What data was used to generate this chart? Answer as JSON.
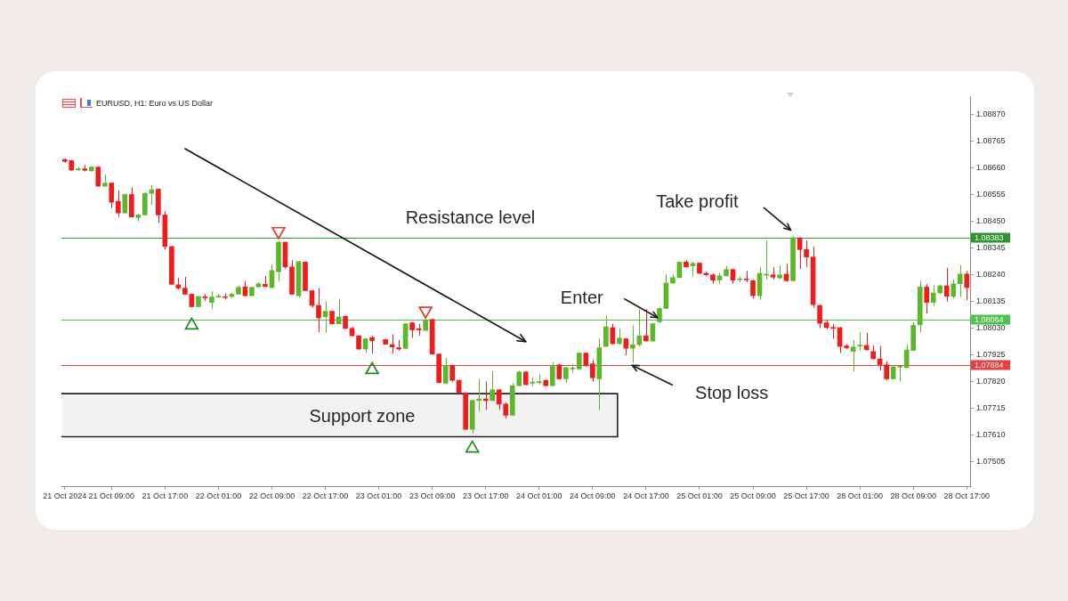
{
  "chart_data": {
    "type": "candlestick",
    "title": "EURUSD, H1: Euro vs US Dollar",
    "categories": [
      "21 Oct 2024",
      null,
      null,
      null,
      null,
      null,
      null,
      "21 Oct 09:00",
      null,
      null,
      null,
      null,
      null,
      null,
      null,
      "21 Oct 17:00",
      null,
      null,
      null,
      null,
      null,
      null,
      null,
      "22 Oct 01:00",
      null,
      null,
      null,
      null,
      null,
      null,
      null,
      "22 Oct 09:00",
      null,
      null,
      null,
      null,
      null,
      null,
      null,
      "22 Oct 17:00",
      null,
      null,
      null,
      null,
      null,
      null,
      null,
      "23 Oct 01:00",
      null,
      null,
      null,
      null,
      null,
      null,
      null,
      "23 Oct 09:00",
      null,
      null,
      null,
      null,
      null,
      null,
      null,
      "23 Oct 17:00",
      null,
      null,
      null,
      null,
      null,
      null,
      null,
      "24 Oct 01:00",
      null,
      null,
      null,
      null,
      null,
      null,
      null,
      "24 Oct 09:00",
      null,
      null,
      null,
      null,
      null,
      null,
      null,
      "24 Oct 17:00",
      null,
      null,
      null,
      null,
      null,
      null,
      null,
      "25 Oct 01:00",
      null,
      null,
      null,
      null,
      null,
      null,
      null,
      "25 Oct 09:00",
      null,
      null,
      null,
      null,
      null,
      null,
      null,
      "25 Oct 17:00",
      null,
      null,
      null,
      null,
      null,
      null,
      null,
      "28 Oct 01:00",
      null,
      null,
      null,
      null,
      null,
      null,
      null,
      "28 Oct 09:00",
      null,
      null,
      null,
      null,
      null,
      null,
      null,
      "28 Oct 17:00"
    ],
    "ohlc": [
      [
        1.08691,
        1.08695,
        1.08679,
        1.08684
      ],
      [
        1.08687,
        1.0869,
        1.08647,
        1.0865
      ],
      [
        1.08651,
        1.08662,
        1.08647,
        1.08653
      ],
      [
        1.08655,
        1.0867,
        1.08645,
        1.08649
      ],
      [
        1.08647,
        1.08666,
        1.08644,
        1.08662
      ],
      [
        1.08662,
        1.08664,
        1.08585,
        1.08587
      ],
      [
        1.08587,
        1.08633,
        1.08585,
        1.08599
      ],
      [
        1.08599,
        1.08601,
        1.08501,
        1.08524
      ],
      [
        1.08527,
        1.08571,
        1.08466,
        1.08482
      ],
      [
        1.08482,
        1.08557,
        1.0848,
        1.08554
      ],
      [
        1.08554,
        1.08582,
        1.08464,
        1.08466
      ],
      [
        1.08464,
        1.08478,
        1.08448,
        1.08474
      ],
      [
        1.08474,
        1.08561,
        1.08472,
        1.08559
      ],
      [
        1.08559,
        1.08592,
        1.08513,
        1.08573
      ],
      [
        1.08575,
        1.08578,
        1.08443,
        1.08474
      ],
      [
        1.08474,
        1.08489,
        1.08338,
        1.0835
      ],
      [
        1.0835,
        1.08352,
        1.08199,
        1.08202
      ],
      [
        1.082,
        1.08227,
        1.08181,
        1.08187
      ],
      [
        1.08187,
        1.08231,
        1.08161,
        1.08163
      ],
      [
        1.08163,
        1.08166,
        1.08113,
        1.08114
      ],
      [
        1.08114,
        1.08156,
        1.08113,
        1.08154
      ],
      [
        1.08153,
        1.08163,
        1.08138,
        1.08149
      ],
      [
        1.08131,
        1.08175,
        1.08105,
        1.08152
      ],
      [
        1.08152,
        1.08163,
        1.08149,
        1.08155
      ],
      [
        1.08153,
        1.08166,
        1.08142,
        1.0815
      ],
      [
        1.08154,
        1.08169,
        1.08148,
        1.08163
      ],
      [
        1.08163,
        1.08198,
        1.08161,
        1.0819
      ],
      [
        1.08192,
        1.08216,
        1.08155,
        1.08157
      ],
      [
        1.08157,
        1.08192,
        1.08155,
        1.0819
      ],
      [
        1.08192,
        1.0821,
        1.08189,
        1.08204
      ],
      [
        1.08202,
        1.08235,
        1.08191,
        1.08193
      ],
      [
        1.08189,
        1.0828,
        1.08187,
        1.08256
      ],
      [
        1.08251,
        1.08371,
        1.08212,
        1.08367
      ],
      [
        1.08367,
        1.08369,
        1.08263,
        1.0827
      ],
      [
        1.0827,
        1.08297,
        1.08161,
        1.08163
      ],
      [
        1.08157,
        1.08294,
        1.08148,
        1.08291
      ],
      [
        1.08289,
        1.08291,
        1.08175,
        1.08177
      ],
      [
        1.08177,
        1.0818,
        1.08111,
        1.08119
      ],
      [
        1.08119,
        1.08187,
        1.08014,
        1.0807
      ],
      [
        1.08075,
        1.08134,
        1.08012,
        1.08096
      ],
      [
        1.08096,
        1.08098,
        1.08044,
        1.08047
      ],
      [
        1.08047,
        1.08145,
        1.08044,
        1.08074
      ],
      [
        1.08076,
        1.08079,
        1.08026,
        1.08029
      ],
      [
        1.08029,
        1.08035,
        1.07998,
        1.08
      ],
      [
        1.08,
        1.08002,
        1.07944,
        1.07948
      ],
      [
        1.07948,
        1.07991,
        1.07932,
        1.07988
      ],
      [
        1.07993,
        1.08,
        1.0793,
        1.07981
      ],
      null,
      [
        1.07985,
        1.07988,
        1.07965,
        1.07967
      ],
      [
        1.07965,
        1.08006,
        1.0793,
        1.07956
      ],
      [
        1.07953,
        1.07983,
        1.07942,
        1.07948
      ],
      [
        1.0795,
        1.08049,
        1.07948,
        1.08047
      ],
      [
        1.08051,
        1.08054,
        1.07991,
        1.08023
      ],
      [
        1.08028,
        1.08047,
        1.08,
        1.08023
      ],
      [
        1.08021,
        1.08065,
        1.08019,
        1.08063
      ],
      [
        1.08064,
        1.08067,
        1.07926,
        1.07928
      ],
      [
        1.07928,
        1.0793,
        1.07814,
        1.07816
      ],
      [
        1.07814,
        1.07913,
        1.0781,
        1.07884
      ],
      [
        1.07884,
        1.07886,
        1.0782,
        1.07825
      ],
      [
        1.07825,
        1.07828,
        1.07773,
        1.07775
      ],
      [
        1.07775,
        1.07778,
        1.07631,
        1.07633
      ],
      [
        1.07633,
        1.0775,
        1.07616,
        1.07746
      ],
      [
        1.07746,
        1.07831,
        1.07703,
        1.07752
      ],
      [
        1.07752,
        1.0782,
        1.07709,
        1.07746
      ],
      [
        1.07746,
        1.0786,
        1.07744,
        1.07788
      ],
      [
        1.07788,
        1.07791,
        1.07709,
        1.07732
      ],
      [
        1.07732,
        1.07738,
        1.07676,
        1.07688
      ],
      [
        1.07688,
        1.07814,
        1.07686,
        1.07804
      ],
      [
        1.07804,
        1.07863,
        1.07802,
        1.07858
      ],
      [
        1.07858,
        1.0786,
        1.07806,
        1.07808
      ],
      [
        1.07814,
        1.07837,
        1.07802,
        1.07818
      ],
      [
        1.07816,
        1.07849,
        1.07808,
        1.0782
      ],
      [
        1.07825,
        1.07828,
        1.07802,
        1.07804
      ],
      [
        1.07804,
        1.07895,
        1.07802,
        1.07884
      ],
      [
        1.07886,
        1.0789,
        1.07828,
        1.07831
      ],
      [
        1.07831,
        1.07878,
        1.07816,
        1.07875
      ],
      [
        1.0787,
        1.0789,
        1.07855,
        1.07874
      ],
      [
        1.0787,
        1.07936,
        1.07867,
        1.07932
      ],
      [
        1.07932,
        1.07935,
        1.07878,
        1.07884
      ],
      [
        1.0789,
        1.07907,
        1.0782,
        1.07835
      ],
      [
        1.07831,
        1.07988,
        1.07709,
        1.07953
      ],
      [
        1.07958,
        1.08079,
        1.07956,
        1.08035
      ],
      [
        1.08032,
        1.08047,
        1.07965,
        1.07969
      ],
      [
        1.07969,
        1.08029,
        1.07965,
        1.07991
      ],
      [
        1.07988,
        1.07991,
        1.07924,
        1.07951
      ],
      [
        1.07951,
        1.08041,
        1.07895,
        1.07965
      ],
      [
        1.07965,
        1.08105,
        1.07958,
        1.08
      ],
      [
        1.08,
        1.08105,
        1.07977,
        1.0798
      ],
      [
        1.07979,
        1.08049,
        1.07977,
        1.08047
      ],
      [
        1.08055,
        1.08111,
        1.08049,
        1.08107
      ],
      [
        1.08107,
        1.08242,
        1.08105,
        1.08207
      ],
      [
        1.08207,
        1.08242,
        1.08204,
        1.08228
      ],
      [
        1.08228,
        1.08291,
        1.08226,
        1.08289
      ],
      [
        1.08289,
        1.08297,
        1.08268,
        1.0827
      ],
      [
        1.08274,
        1.08291,
        1.08233,
        1.08284
      ],
      [
        1.08285,
        1.08288,
        1.08242,
        1.08245
      ],
      [
        1.08245,
        1.08251,
        1.08235,
        1.08239
      ],
      [
        1.08239,
        1.08245,
        1.08204,
        1.08218
      ],
      [
        1.08219,
        1.08247,
        1.08203,
        1.08235
      ],
      [
        1.08235,
        1.08274,
        1.08233,
        1.0826
      ],
      [
        1.0826,
        1.08262,
        1.08204,
        1.08218
      ],
      [
        1.0822,
        1.08233,
        1.0821,
        1.08223
      ],
      [
        1.08221,
        1.08254,
        1.0821,
        1.08219
      ],
      [
        1.08216,
        1.08221,
        1.08146,
        1.08157
      ],
      [
        1.08157,
        1.0827,
        1.0814,
        1.08245
      ],
      [
        1.08238,
        1.08373,
        1.08221,
        1.0824
      ],
      [
        1.08239,
        1.0827,
        1.08221,
        1.0823
      ],
      [
        1.08227,
        1.08277,
        1.08221,
        1.08239
      ],
      [
        1.08242,
        1.08282,
        1.08212,
        1.08216
      ],
      [
        1.08216,
        1.0839,
        1.08213,
        1.08385
      ],
      [
        1.08384,
        1.08387,
        1.08262,
        1.08338
      ],
      [
        1.08338,
        1.08373,
        1.0827,
        1.08309
      ],
      [
        1.08309,
        1.0835,
        1.08111,
        1.08122
      ],
      [
        1.08119,
        1.08121,
        1.08029,
        1.08049
      ],
      [
        1.08051,
        1.08064,
        1.08026,
        1.08032
      ],
      [
        1.08033,
        1.08047,
        1.07988,
        1.08029
      ],
      [
        1.08032,
        1.08035,
        1.07932,
        1.07958
      ],
      [
        1.0796,
        1.07967,
        1.07948,
        1.07953
      ],
      [
        1.07939,
        1.07983,
        1.0786,
        1.07956
      ],
      [
        1.0796,
        1.08014,
        1.07942,
        1.07964
      ],
      [
        1.07962,
        1.08012,
        1.07942,
        1.07945
      ],
      [
        1.07938,
        1.07963,
        1.07907,
        1.0791
      ],
      [
        1.07909,
        1.07959,
        1.07863,
        1.07887
      ],
      [
        1.07886,
        1.07901,
        1.07825,
        1.07831
      ],
      [
        1.07831,
        1.07881,
        1.07829,
        1.07878
      ],
      [
        1.07877,
        1.07884,
        1.0782,
        1.07879
      ],
      [
        1.07875,
        1.07967,
        1.07872,
        1.07944
      ],
      [
        1.07942,
        1.08053,
        1.0794,
        1.08041
      ],
      [
        1.08043,
        1.08216,
        1.08012,
        1.08191
      ],
      [
        1.08191,
        1.08203,
        1.08088,
        1.08131
      ],
      [
        1.08131,
        1.08198,
        1.08117,
        1.08168
      ],
      [
        1.08168,
        1.082,
        1.08163,
        1.08196
      ],
      [
        1.08196,
        1.08266,
        1.08134,
        1.08155
      ],
      [
        1.08155,
        1.08221,
        1.08146,
        1.08204
      ],
      [
        1.08204,
        1.08277,
        1.08152,
        1.08242
      ],
      [
        1.08242,
        1.08254,
        1.0814,
        1.08189
      ]
    ],
    "colors": [
      "#f01c1c",
      "#f01c1c",
      "#5cb82a",
      "#f01c1c",
      "#5cb82a",
      "#f01c1c",
      "#5cb82a",
      "#f01c1c",
      "#f01c1c",
      "#5cb82a",
      "#f01c1c",
      "#5cb82a",
      "#5cb82a",
      "#5cb82a",
      "#f01c1c",
      "#f01c1c",
      "#f01c1c",
      "#f01c1c",
      "#f01c1c",
      "#f01c1c",
      "#5cb82a",
      "#f01c1c",
      "#5cb82a",
      "#5cb82a",
      "#f01c1c",
      "#5cb82a",
      "#5cb82a",
      "#f01c1c",
      "#5cb82a",
      "#5cb82a",
      "#f01c1c",
      "#5cb82a",
      "#5cb82a",
      "#f01c1c",
      "#f01c1c",
      "#5cb82a",
      "#f01c1c",
      "#f01c1c",
      "#f01c1c",
      "#5cb82a",
      "#f01c1c",
      "#5cb82a",
      "#f01c1c",
      "#f01c1c",
      "#f01c1c",
      "#5cb82a",
      "#f01c1c",
      null,
      "#f01c1c",
      "#f01c1c",
      "#f01c1c",
      "#5cb82a",
      "#f01c1c",
      "#f01c1c",
      "#5cb82a",
      "#f01c1c",
      "#f01c1c",
      "#5cb82a",
      "#f01c1c",
      "#f01c1c",
      "#f01c1c",
      "#5cb82a",
      "#5cb82a",
      "#f01c1c",
      "#5cb82a",
      "#f01c1c",
      "#f01c1c",
      "#5cb82a",
      "#5cb82a",
      "#f01c1c",
      "#5cb82a",
      "#5cb82a",
      "#f01c1c",
      "#5cb82a",
      "#f01c1c",
      "#5cb82a",
      "#5cb82a",
      "#5cb82a",
      "#f01c1c",
      "#f01c1c",
      "#5cb82a",
      "#5cb82a",
      "#f01c1c",
      "#5cb82a",
      "#f01c1c",
      "#5cb82a",
      "#5cb82a",
      "#f01c1c",
      "#5cb82a",
      "#5cb82a",
      "#5cb82a",
      "#5cb82a",
      "#5cb82a",
      "#f01c1c",
      "#5cb82a",
      "#f01c1c",
      "#f01c1c",
      "#f01c1c",
      "#5cb82a",
      "#5cb82a",
      "#f01c1c",
      "#5cb82a",
      "#f01c1c",
      "#f01c1c",
      "#5cb82a",
      "#5cb82a",
      "#f01c1c",
      "#5cb82a",
      "#f01c1c",
      "#5cb82a",
      "#f01c1c",
      "#f01c1c",
      "#f01c1c",
      "#f01c1c",
      "#f01c1c",
      "#f01c1c",
      "#f01c1c",
      "#f01c1c",
      "#5cb82a",
      "#5cb82a",
      "#f01c1c",
      "#f01c1c",
      "#f01c1c",
      "#f01c1c",
      "#5cb82a",
      "#5cb82a",
      "#5cb82a",
      "#5cb82a",
      "#5cb82a",
      "#f01c1c",
      "#5cb82a",
      "#5cb82a",
      "#f01c1c",
      "#5cb82a",
      "#5cb82a",
      "#f01c1c"
    ],
    "ylim": [
      1.0741,
      1.0894
    ],
    "yticks": [
      1.07505,
      {
        "value": 1.0761,
        "label": "1.07610"
      },
      1.07715,
      {
        "value": 1.0782,
        "label": "1.07820"
      },
      1.07925,
      {
        "value": 1.0803,
        "label": "1.08030"
      },
      1.08135,
      {
        "value": 1.0824,
        "label": "1.08240"
      },
      1.08345,
      {
        "value": 1.0845,
        "label": "1.08450"
      },
      1.08555,
      {
        "value": 1.0866,
        "label": "1.08660"
      },
      1.08765,
      {
        "value": 1.0887,
        "label": "1.08870"
      }
    ],
    "series": [
      {
        "type": "line",
        "color": "#111111",
        "values": [
          null,
          null,
          null,
          null,
          null,
          null,
          null,
          null,
          null,
          null,
          null,
          null,
          null,
          null,
          null,
          null,
          null,
          null,
          1.08734,
          null,
          null,
          null,
          null,
          null,
          null,
          null,
          null,
          null,
          null,
          null,
          null,
          null,
          null,
          null,
          null,
          null,
          null,
          null,
          null,
          null,
          null,
          null,
          null,
          null,
          null,
          null,
          null,
          null,
          null,
          null,
          null,
          null,
          null,
          null,
          null,
          null,
          null,
          null,
          null,
          null,
          null,
          null,
          null,
          null,
          null,
          null,
          null,
          null,
          null,
          1.07977,
          null,
          null,
          null,
          null,
          null,
          null,
          null,
          null,
          null,
          null,
          null,
          null,
          null,
          null,
          null,
          null,
          null,
          null,
          null,
          null,
          null,
          null,
          null,
          null,
          null,
          null,
          null,
          null,
          null,
          null,
          null,
          null,
          null,
          null,
          null,
          null,
          null,
          null,
          null,
          null,
          null,
          null,
          null,
          null,
          null,
          null,
          null,
          null,
          null,
          null,
          null,
          null,
          null,
          null,
          null,
          null,
          null,
          null,
          null,
          null,
          null,
          null,
          null,
          null,
          null,
          null
        ]
      },
      {
        "type": "scatter",
        "color": "#1f8a1f",
        "marker": "triangle",
        "values": [
          null,
          null,
          null,
          null,
          null,
          null,
          null,
          null,
          null,
          null,
          null,
          null,
          null,
          null,
          null,
          null,
          null,
          null,
          null,
          1.08041,
          null,
          null,
          null,
          null,
          null,
          null,
          null,
          null,
          null,
          null,
          null,
          null,
          null,
          null,
          null,
          null,
          null,
          null,
          null,
          null,
          null,
          null,
          null,
          null,
          null,
          null,
          1.07866,
          null,
          null,
          null,
          null,
          null,
          null,
          null,
          null,
          null,
          null,
          null,
          null,
          null,
          null,
          1.07558,
          null,
          null,
          null,
          null,
          null,
          null,
          null,
          null,
          null,
          null,
          null,
          null,
          null,
          null,
          null,
          null,
          null,
          null,
          null,
          null,
          null,
          null,
          null,
          null,
          null,
          null,
          null,
          null,
          null,
          null,
          null,
          null,
          null,
          null,
          null,
          null,
          null,
          null,
          null,
          null,
          null,
          null,
          null,
          null,
          null,
          null,
          null,
          null,
          null,
          null,
          null,
          null,
          null,
          null,
          null,
          null,
          null,
          null,
          null,
          null,
          null,
          null,
          null,
          null,
          null,
          null,
          null,
          null,
          null,
          null,
          null,
          null,
          null,
          null
        ]
      },
      {
        "type": "scatter",
        "color": "#e53b2f",
        "marker": "triangle",
        "values": [
          null,
          null,
          null,
          null,
          null,
          null,
          null,
          null,
          null,
          null,
          null,
          null,
          null,
          null,
          null,
          null,
          null,
          null,
          null,
          null,
          null,
          null,
          null,
          null,
          null,
          null,
          null,
          null,
          null,
          null,
          null,
          null,
          1.0841,
          null,
          null,
          null,
          null,
          null,
          null,
          null,
          null,
          null,
          null,
          null,
          null,
          null,
          null,
          null,
          null,
          null,
          null,
          null,
          null,
          null,
          1.08098,
          null,
          null,
          null,
          null,
          null,
          null,
          null,
          null,
          null,
          null,
          null,
          null,
          null,
          null,
          null,
          null,
          null,
          null,
          null,
          null,
          null,
          null,
          null,
          null,
          null,
          null,
          null,
          null,
          null,
          null,
          null,
          null,
          null,
          null,
          null,
          null,
          null,
          null,
          null,
          null,
          null,
          null,
          null,
          null,
          null,
          null,
          null,
          null,
          null,
          null,
          null,
          null,
          null,
          null,
          null,
          null,
          null,
          null,
          null,
          null,
          null,
          null,
          null,
          null,
          null,
          null,
          null,
          null,
          null,
          null,
          null,
          null,
          null,
          null,
          null,
          null,
          null,
          null,
          null,
          null,
          null
        ]
      }
    ],
    "ref_lines": [
      {
        "axis": "y",
        "value": 1.08383,
        "label": "1.08383",
        "color": "#2f962f"
      },
      {
        "axis": "y",
        "value": 1.08064,
        "label": "1.08064",
        "color": "#4cc44c"
      },
      {
        "axis": "y",
        "value": 1.07884,
        "label": "1.07884",
        "color": "#f03c3c"
      }
    ],
    "bands": [
      {
        "axis": "y",
        "from": 1.07604,
        "to": 1.07773,
        "label": "Support zone",
        "color": "#222222"
      }
    ],
    "annotations": [
      {
        "text": "Resistance level",
        "y": 1.08383
      },
      {
        "text": "Take profit",
        "y": 1.08383
      },
      {
        "text": "Enter",
        "y": 1.08064
      },
      {
        "text": "Stop loss",
        "y": 1.07884
      }
    ]
  }
}
